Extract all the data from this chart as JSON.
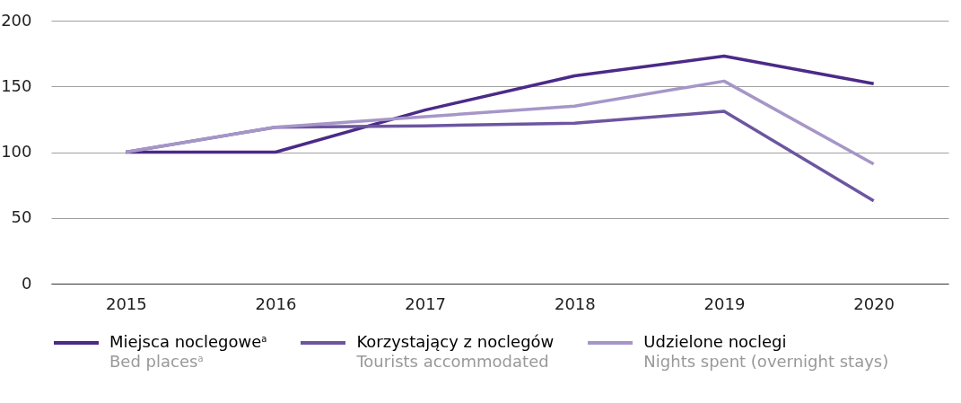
{
  "chart_data": {
    "type": "line",
    "categories": [
      "2015",
      "2016",
      "2017",
      "2018",
      "2019",
      "2020"
    ],
    "series": [
      {
        "name": "Miejsca noclegowe$^{a}$\nBed places$^{a}$",
        "color": "#4b2a88",
        "values": [
          100,
          100,
          132,
          158,
          173,
          152
        ]
      },
      {
        "name": "Korzystający z noclegów\nTourists accommodated",
        "color": "#6d55a0",
        "values": [
          100,
          119,
          120,
          122,
          131,
          63
        ]
      },
      {
        "name": "Udzielone noclegi\nNights spent (overnight stays)",
        "color": "#a696c8",
        "values": [
          100,
          119,
          127,
          135,
          154,
          91
        ]
      }
    ],
    "ylim": [
      0,
      200
    ],
    "yticks": [
      0,
      50,
      100,
      150,
      200
    ],
    "grid": "y",
    "legend": "bottom",
    "marker": "none",
    "line_style": "solid"
  }
}
